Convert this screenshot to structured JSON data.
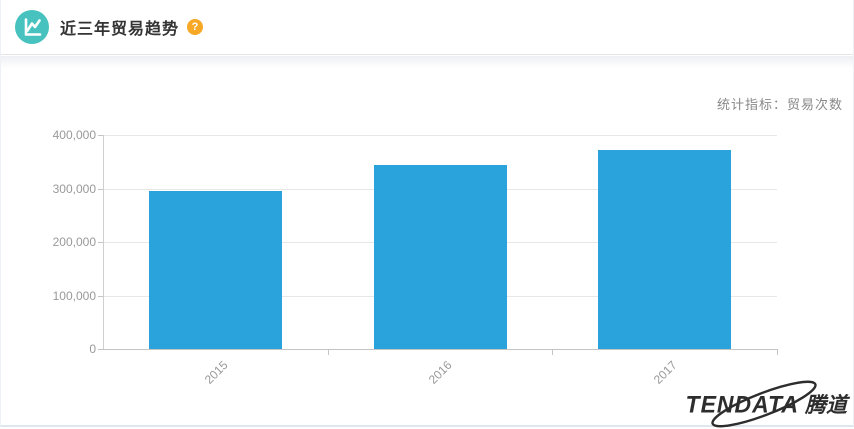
{
  "panel": {
    "title": "近三年贸易趋势",
    "help_label": "?"
  },
  "indicator_label": "统计指标：贸易次数",
  "chart_data": {
    "type": "bar",
    "title": "近三年贸易趋势",
    "categories": [
      "2015",
      "2016",
      "2017"
    ],
    "series": [
      {
        "name": "贸易次数",
        "values": [
          296000,
          343000,
          372000
        ]
      }
    ],
    "xlabel": "",
    "ylabel": "",
    "ylim": [
      0,
      400000
    ],
    "yticks": [
      0,
      100000,
      200000,
      300000,
      400000
    ],
    "ytick_labels": [
      "0",
      "100,000",
      "200,000",
      "300,000",
      "400,000"
    ],
    "grid": true,
    "legend_position": "none",
    "bar_color": "#2AA2DB"
  },
  "colors": {
    "bar_blue": "#2AA2DB",
    "icon_teal": "#47C2BF",
    "help_orange": "#F7A825"
  },
  "logo": {
    "en": "TENDATA",
    "cn": "腾道"
  }
}
